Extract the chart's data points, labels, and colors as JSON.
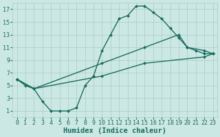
{
  "xlabel": "Humidex (Indice chaleur)",
  "bg_color": "#cce8e4",
  "grid_color": "#b0cfc9",
  "line_color": "#1a6b5e",
  "xlim": [
    -0.5,
    23.5
  ],
  "ylim": [
    0,
    18
  ],
  "xticks": [
    0,
    1,
    2,
    3,
    4,
    5,
    6,
    7,
    8,
    9,
    10,
    11,
    12,
    13,
    14,
    15,
    16,
    17,
    18,
    19,
    20,
    21,
    22,
    23
  ],
  "yticks": [
    1,
    3,
    5,
    7,
    9,
    11,
    13,
    15,
    17
  ],
  "curve1_x": [
    0,
    1,
    2,
    3,
    4,
    5,
    6,
    7,
    8,
    9,
    10,
    11,
    12,
    13,
    14,
    15,
    16,
    17,
    18,
    19,
    20,
    21,
    22,
    23
  ],
  "curve1_y": [
    6,
    5,
    4.5,
    2.5,
    1.0,
    1.0,
    1.0,
    1.5,
    5.0,
    6.5,
    10.5,
    13,
    15.5,
    16,
    17.5,
    17.5,
    16.5,
    15.5,
    14,
    12.5,
    11,
    10.5,
    10,
    10
  ],
  "curve2_x": [
    0,
    2,
    10,
    15,
    19,
    20,
    22,
    23
  ],
  "curve2_y": [
    6,
    4.5,
    8.5,
    11,
    13,
    11,
    10.5,
    10
  ],
  "curve3_x": [
    0,
    2,
    10,
    15,
    22,
    23
  ],
  "curve3_y": [
    6,
    4.5,
    6.5,
    8.5,
    9.5,
    10
  ],
  "markersize": 2.5,
  "linewidth": 1.0,
  "xlabel_fontsize": 7.5,
  "tick_fontsize": 6
}
